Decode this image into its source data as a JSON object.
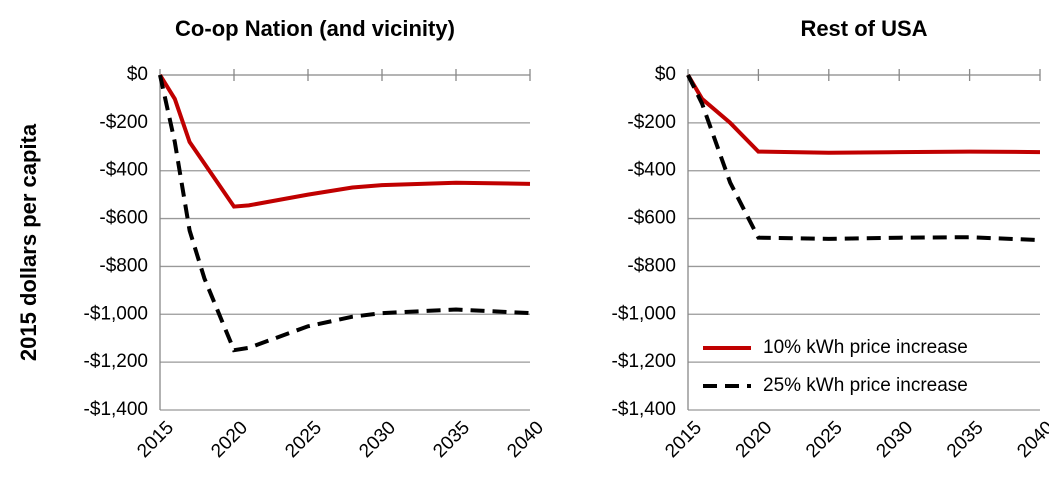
{
  "chart_data": [
    {
      "type": "line",
      "title": "Co-op Nation (and vicinity)",
      "y_label": "2015 dollars per capita",
      "x": [
        2015,
        2016,
        2017,
        2018,
        2020,
        2021,
        2025,
        2028,
        2030,
        2035,
        2040
      ],
      "series": [
        {
          "name": "10% kWh price increase",
          "color": "#c00000",
          "dash": "solid",
          "values": [
            0,
            -100,
            -280,
            -370,
            -550,
            -545,
            -500,
            -470,
            -460,
            -450,
            -455
          ]
        },
        {
          "name": "25% kWh price increase",
          "color": "#000000",
          "dash": "dashed",
          "values": [
            0,
            -280,
            -650,
            -850,
            -1150,
            -1140,
            -1050,
            -1010,
            -995,
            -980,
            -995
          ]
        }
      ],
      "xlim": [
        2015,
        2040
      ],
      "xticks": [
        2015,
        2020,
        2025,
        2030,
        2035,
        2040
      ],
      "ylim": [
        -1400,
        0
      ],
      "yticks": [
        {
          "value": 0,
          "label": "$0"
        },
        {
          "value": -200,
          "label": "-$200"
        },
        {
          "value": -400,
          "label": "-$400"
        },
        {
          "value": -600,
          "label": "-$600"
        },
        {
          "value": -800,
          "label": "-$800"
        },
        {
          "value": -1000,
          "label": "-$1,000"
        },
        {
          "value": -1200,
          "label": "-$1,200"
        },
        {
          "value": -1400,
          "label": "-$1,400"
        }
      ],
      "grid": true,
      "legend": false
    },
    {
      "type": "line",
      "title": "Rest of USA",
      "x": [
        2015,
        2016,
        2018,
        2020,
        2025,
        2030,
        2035,
        2040
      ],
      "series": [
        {
          "name": "10% kWh price increase",
          "color": "#c00000",
          "dash": "solid",
          "values": [
            0,
            -100,
            -200,
            -320,
            -325,
            -322,
            -320,
            -322
          ]
        },
        {
          "name": "25% kWh price increase",
          "color": "#000000",
          "dash": "dashed",
          "values": [
            0,
            -120,
            -450,
            -680,
            -685,
            -680,
            -678,
            -690
          ]
        }
      ],
      "xlim": [
        2015,
        2040
      ],
      "xticks": [
        2015,
        2020,
        2025,
        2030,
        2035,
        2040
      ],
      "ylim": [
        -1400,
        0
      ],
      "yticks": [
        {
          "value": 0,
          "label": "$0"
        },
        {
          "value": -200,
          "label": "-$200"
        },
        {
          "value": -400,
          "label": "-$400"
        },
        {
          "value": -600,
          "label": "-$600"
        },
        {
          "value": -800,
          "label": "-$800"
        },
        {
          "value": -1000,
          "label": "-$1,000"
        },
        {
          "value": -1200,
          "label": "-$1,200"
        },
        {
          "value": -1400,
          "label": "-$1,400"
        }
      ],
      "grid": true,
      "legend": "lower right"
    }
  ]
}
